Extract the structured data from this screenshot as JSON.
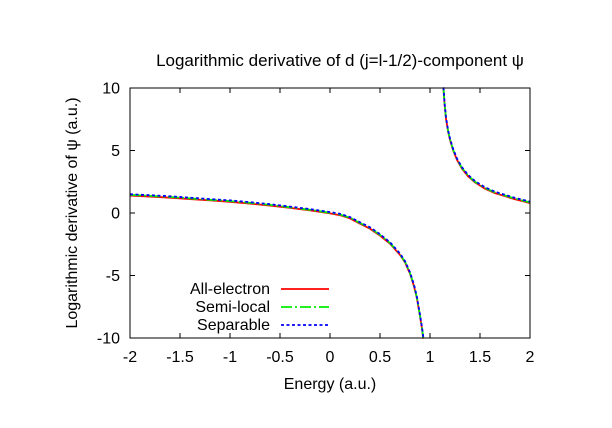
{
  "chart_data": {
    "type": "line",
    "title": "Logarithmic derivative of d (j=l-1/2)-component ψ",
    "xlabel": "Energy (a.u.)",
    "ylabel": "Logarithmic derivative of ψ (a.u.)",
    "xlim": [
      -2,
      2
    ],
    "ylim": [
      -10,
      10
    ],
    "xticks": [
      -2,
      -1.5,
      -1,
      -0.5,
      0,
      0.5,
      1,
      1.5,
      2
    ],
    "xtick_labels": [
      "-2",
      "-1.5",
      "-1",
      "-0.5",
      "0",
      "0.5",
      "1",
      "1.5",
      "2"
    ],
    "yticks": [
      -10,
      -5,
      0,
      5,
      10
    ],
    "ytick_labels": [
      "-10",
      "-5",
      "0",
      "5",
      "10"
    ],
    "grid": false,
    "legend_position": "inside bottom-left",
    "note": "All three curves coincide within plot resolution; vertical asymptote (pole) near E ≈ 0.95 a.u. branch1 is the left/lower branch, branch2 the upper-right branch.",
    "branches": {
      "branch1": [
        [
          -2,
          1.45
        ],
        [
          -1.8,
          1.37
        ],
        [
          -1.6,
          1.28
        ],
        [
          -1.4,
          1.17
        ],
        [
          -1.2,
          1.06
        ],
        [
          -1,
          0.95
        ],
        [
          -0.8,
          0.81
        ],
        [
          -0.6,
          0.65
        ],
        [
          -0.4,
          0.46
        ],
        [
          -0.2,
          0.26
        ],
        [
          0,
          0.02
        ],
        [
          0.1,
          -0.12
        ],
        [
          0.2,
          -0.38
        ],
        [
          0.3,
          -0.8
        ],
        [
          0.4,
          -1.2
        ],
        [
          0.5,
          -1.75
        ],
        [
          0.6,
          -2.4
        ],
        [
          0.65,
          -2.85
        ],
        [
          0.7,
          -3.3
        ],
        [
          0.75,
          -3.9
        ],
        [
          0.8,
          -4.8
        ],
        [
          0.84,
          -5.8
        ],
        [
          0.87,
          -6.8
        ],
        [
          0.9,
          -8.2
        ],
        [
          0.92,
          -9.2
        ],
        [
          0.933,
          -10
        ]
      ],
      "branch2": [
        [
          1.135,
          10
        ],
        [
          1.145,
          8.8
        ],
        [
          1.16,
          7.6
        ],
        [
          1.18,
          6.6
        ],
        [
          1.2,
          5.9
        ],
        [
          1.23,
          5.1
        ],
        [
          1.27,
          4.3
        ],
        [
          1.32,
          3.6
        ],
        [
          1.38,
          3
        ],
        [
          1.45,
          2.5
        ],
        [
          1.55,
          2
        ],
        [
          1.65,
          1.65
        ],
        [
          1.75,
          1.4
        ],
        [
          1.85,
          1.15
        ],
        [
          1.95,
          0.95
        ],
        [
          2,
          0.85
        ]
      ]
    },
    "series": [
      {
        "name": "All-electron",
        "color": "#ff0000",
        "style": "solid"
      },
      {
        "name": "Semi-local",
        "color": "#00ee00",
        "style": "dash-dot"
      },
      {
        "name": "Separable",
        "color": "#0000ff",
        "style": "dashed"
      }
    ]
  }
}
